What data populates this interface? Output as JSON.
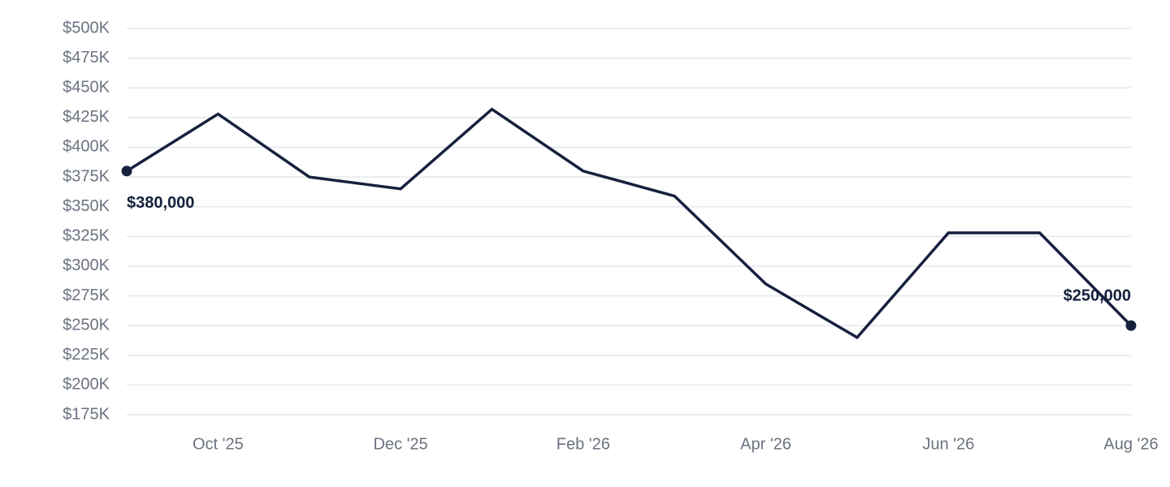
{
  "chart_data": {
    "type": "line",
    "categories": [
      null,
      "Oct '25",
      null,
      "Dec '25",
      null,
      "Feb '26",
      null,
      "Apr '26",
      null,
      "Jun '26",
      null,
      "Aug '26"
    ],
    "values": [
      380000,
      428000,
      375000,
      365000,
      432000,
      380000,
      359000,
      285000,
      240000,
      328000,
      328000,
      250000
    ],
    "value_labels": [
      "$380,000",
      null,
      null,
      null,
      null,
      null,
      null,
      null,
      null,
      null,
      null,
      "$250,000"
    ],
    "color": "#16213e",
    "ylim": [
      175000,
      500000
    ],
    "yticks": [
      {
        "value": 175000,
        "label": "$175K"
      },
      {
        "value": 200000,
        "label": "$200K"
      },
      {
        "value": 225000,
        "label": "$225K"
      },
      {
        "value": 250000,
        "label": "$250K"
      },
      {
        "value": 275000,
        "label": "$275K"
      },
      {
        "value": 300000,
        "label": "$300K"
      },
      {
        "value": 325000,
        "label": "$325K"
      },
      {
        "value": 350000,
        "label": "$350K"
      },
      {
        "value": 375000,
        "label": "$375K"
      },
      {
        "value": 400000,
        "label": "$400K"
      },
      {
        "value": 425000,
        "label": "$425K"
      },
      {
        "value": 450000,
        "label": "$450K"
      },
      {
        "value": 475000,
        "label": "$475K"
      },
      {
        "value": 500000,
        "label": "$500K"
      }
    ],
    "grid": true
  }
}
